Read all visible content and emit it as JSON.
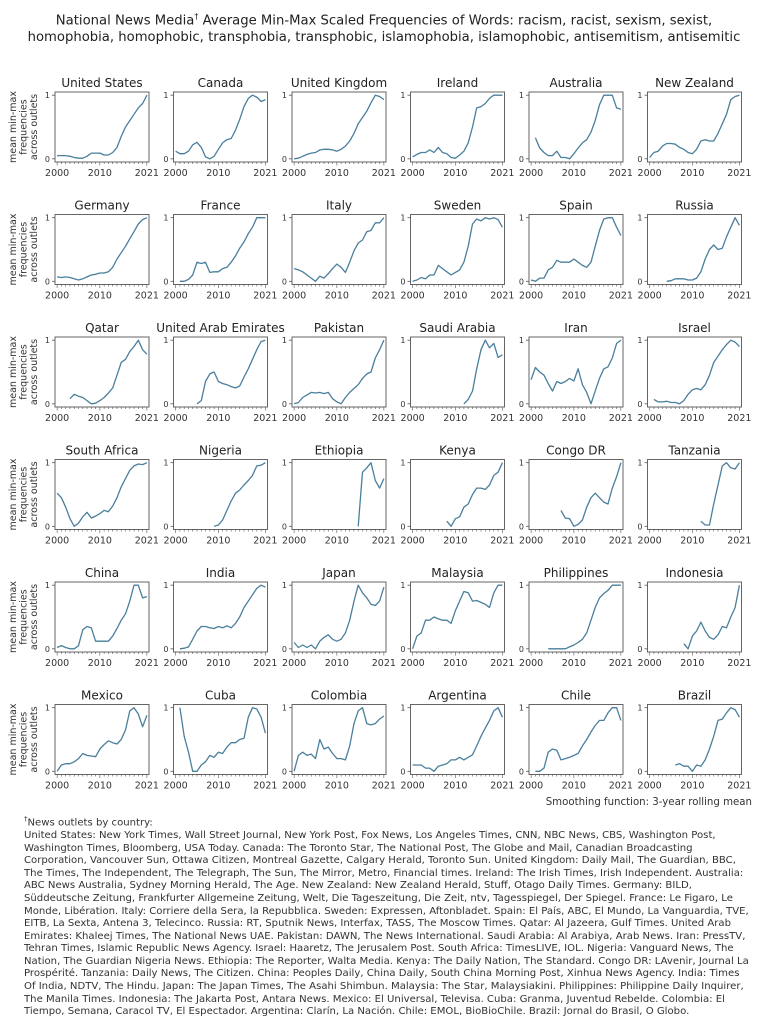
{
  "title": {
    "line1_prefix": "National News Media",
    "marker": "†",
    "line1_rest": " Average Min-Max Scaled Frequencies of Words: racism, racist, sexism, sexist,",
    "line2": "homophobia, homophobic, transphobia, transphobic, islamophobia, islamophobic, antisemitism, antisemitic"
  },
  "smoothing_note": "Smoothing function: 3-year rolling mean",
  "footnote": {
    "marker": "†",
    "heading": "News outlets by country:",
    "body": "United States: New York Times, Wall Street Journal, New York Post, Fox News, Los Angeles Times, CNN, NBC News, CBS, Washington Post, Washington Times, Bloomberg, USA Today. Canada: The Toronto Star, The National Post, The Globe and Mail, Canadian Broadcasting Corporation, Vancouver Sun, Ottawa Citizen, Montreal Gazette, Calgary Herald, Toronto Sun. United Kingdom: Daily Mail, The Guardian, BBC, The Times, The Independent, The Telegraph, The Sun, The Mirror, Metro, Financial times. Ireland: The Irish Times, Irish Independent. Australia: ABC News Australia, Sydney Morning Herald, The Age. New Zealand: New Zealand Herald, Stuff, Otago Daily Times. Germany: BILD, Süddeutsche Zeitung, Frankfurter Allgemeine Zeitung, Welt, Die Tageszeitung, Die Zeit, ntv, Tagesspiegel, Der Spiegel. France: Le Figaro, Le Monde, Libération. Italy: Corriere della Sera, la Repubblica. Sweden: Expressen, Aftonbladet. Spain: El País, ABC, El Mundo, La Vanguardia, TVE, EITB, La Sexta, Antena 3, Telecinco. Russia: RT, Sputnik News, Interfax, TASS, The Moscow Times. Qatar: Al Jazeera, Gulf Times. United Arab Emirates: Khaleej Times, The National News UAE. Pakistan: DAWN, The News International. Saudi Arabia: Al Arabiya, Arab News. Iran: PressTV, Tehran Times, Islamic Republic News Agency. Israel: Haaretz, The Jerusalem Post. South Africa: TimesLIVE, IOL. Nigeria: Vanguard News, The Nation, The Guardian Nigeria News. Ethiopia: The Reporter, Walta Media. Kenya: The Daily Nation, The Standard. Congo DR: LAvenir, Journal La Prospérité. Tanzania: Daily News, The Citizen. China: Peoples Daily, China Daily, South China Morning Post, Xinhua News Agency. India: Times Of India, NDTV, The Hindu. Japan: The Japan Times, The Asahi Shimbun. Malaysia: The Star, Malaysiakini. Philippines: Philippine Daily Inquirer, The Manila Times. Indonesia: The Jakarta Post, Antara News. Mexico: El Universal, Televisa. Cuba: Granma, Juventud Rebelde. Colombia: El Tiempo, Semana, Caracol TV, El Espectador. Argentina: Clarín, La Nación. Chile: EMOL, BioBioChile. Brazil: Jornal do Brasil, O Globo."
  },
  "chart_data": {
    "type": "line",
    "layout": "small-multiples 6x6",
    "ylabel_lines": [
      "mean min-max",
      "frequencies",
      "across outlets"
    ],
    "x_ticks": [
      "2000",
      "2010",
      "2021"
    ],
    "y_ticks": [
      "0",
      "1"
    ],
    "xlim": [
      2000,
      2021
    ],
    "ylim": [
      0,
      1
    ],
    "minor_x_ticks": "yearly",
    "grid": false,
    "line_color": "#4a7f9c",
    "x": [
      2000,
      2001,
      2002,
      2003,
      2004,
      2005,
      2006,
      2007,
      2008,
      2009,
      2010,
      2011,
      2012,
      2013,
      2014,
      2015,
      2016,
      2017,
      2018,
      2019,
      2020,
      2021
    ],
    "panels": [
      {
        "title": "United States",
        "values": [
          0.05,
          0.05,
          0.05,
          0.04,
          0.02,
          0.01,
          0.01,
          0.04,
          0.09,
          0.09,
          0.09,
          0.06,
          0.06,
          0.1,
          0.18,
          0.35,
          0.5,
          0.6,
          0.7,
          0.8,
          0.87,
          1.0
        ]
      },
      {
        "title": "Canada",
        "values": [
          0.12,
          0.08,
          0.08,
          0.12,
          0.22,
          0.26,
          0.18,
          0.03,
          0,
          0.04,
          0.15,
          0.25,
          0.3,
          0.32,
          0.45,
          0.62,
          0.82,
          0.95,
          1.0,
          0.97,
          0.9,
          0.93
        ]
      },
      {
        "title": "United Kingdom",
        "values": [
          0,
          0.01,
          0.04,
          0.07,
          0.09,
          0.1,
          0.14,
          0.15,
          0.15,
          0.14,
          0.12,
          0.15,
          0.2,
          0.28,
          0.4,
          0.55,
          0.65,
          0.75,
          0.88,
          1.0,
          0.98,
          0.93
        ]
      },
      {
        "title": "Ireland",
        "values": [
          0.03,
          0.07,
          0.1,
          0.1,
          0.14,
          0.1,
          0.18,
          0.1,
          0.08,
          0.02,
          0.01,
          0.06,
          0.12,
          0.25,
          0.5,
          0.8,
          0.82,
          0.87,
          0.95,
          1.0,
          1.0,
          1.0
        ]
      },
      {
        "title": "Australia",
        "values": [
          null,
          0.33,
          0.17,
          0.1,
          0.05,
          0.05,
          0.12,
          0.02,
          0.02,
          0,
          0.08,
          0.17,
          0.25,
          0.3,
          0.42,
          0.6,
          0.85,
          1.0,
          1.0,
          1.0,
          0.8,
          0.78
        ]
      },
      {
        "title": "New Zealand",
        "values": [
          0.02,
          0.1,
          0.12,
          0.2,
          0.24,
          0.24,
          0.23,
          0.18,
          0.15,
          0.1,
          0.08,
          0.15,
          0.28,
          0.3,
          0.28,
          0.28,
          0.4,
          0.55,
          0.7,
          0.93,
          0.98,
          1.0
        ]
      },
      {
        "title": "Germany",
        "values": [
          0.07,
          0.06,
          0.07,
          0.06,
          0.04,
          0.02,
          0.04,
          0.07,
          0.1,
          0.11,
          0.13,
          0.13,
          0.15,
          0.22,
          0.35,
          0.45,
          0.55,
          0.67,
          0.78,
          0.9,
          0.97,
          1.0
        ]
      },
      {
        "title": "France",
        "values": [
          null,
          0,
          0,
          0.03,
          0.1,
          0.3,
          0.28,
          0.3,
          0.14,
          0.15,
          0.15,
          0.2,
          0.22,
          0.3,
          0.4,
          0.52,
          0.62,
          0.75,
          0.85,
          1.0,
          1.0,
          1.0
        ]
      },
      {
        "title": "Italy",
        "values": [
          0.2,
          0.18,
          0.15,
          0.1,
          0.05,
          0,
          0.08,
          0.05,
          0.12,
          0.2,
          0.27,
          0.22,
          0.14,
          0.3,
          0.48,
          0.6,
          0.65,
          0.78,
          0.8,
          0.92,
          0.92,
          1.0
        ]
      },
      {
        "title": "Sweden",
        "values": [
          0,
          0.02,
          0.06,
          0.04,
          0.1,
          0.1,
          0.25,
          0.2,
          0.15,
          0.1,
          0.14,
          0.18,
          0.3,
          0.55,
          0.9,
          0.98,
          0.95,
          1.0,
          0.98,
          1.0,
          0.97,
          0.85
        ]
      },
      {
        "title": "Spain",
        "values": [
          0.02,
          0,
          0.05,
          0.05,
          0.18,
          0.22,
          0.33,
          0.3,
          0.3,
          0.3,
          0.35,
          0.3,
          0.25,
          0.22,
          0.3,
          0.55,
          0.8,
          0.98,
          1.0,
          1.0,
          0.85,
          0.72
        ]
      },
      {
        "title": "Russia",
        "values": [
          null,
          null,
          null,
          null,
          0,
          0.01,
          0.04,
          0.04,
          0.04,
          0.02,
          0.02,
          0.05,
          0.15,
          0.35,
          0.5,
          0.57,
          0.5,
          0.52,
          0.7,
          0.85,
          1.0,
          0.88
        ]
      },
      {
        "title": "Qatar",
        "values": [
          null,
          null,
          null,
          0.08,
          0.15,
          0.12,
          0.1,
          0.05,
          0,
          0.01,
          0.05,
          0.1,
          0.17,
          0.25,
          0.45,
          0.65,
          0.7,
          0.82,
          0.9,
          1.0,
          0.85,
          0.78
        ]
      },
      {
        "title": "United Arab Emirates",
        "values": [
          null,
          null,
          null,
          null,
          null,
          0,
          0.05,
          0.35,
          0.47,
          0.5,
          0.35,
          0.32,
          0.3,
          0.27,
          0.25,
          0.28,
          0.42,
          0.55,
          0.7,
          0.85,
          0.98,
          1.0
        ]
      },
      {
        "title": "Pakistan",
        "values": [
          0,
          0.02,
          0.1,
          0.14,
          0.18,
          0.17,
          0.18,
          0.16,
          0.18,
          0.08,
          0.03,
          0,
          0.1,
          0.18,
          0.24,
          0.3,
          0.4,
          0.47,
          0.5,
          0.72,
          0.85,
          1.0
        ]
      },
      {
        "title": "Saudi Arabia",
        "values": [
          null,
          null,
          null,
          null,
          null,
          null,
          null,
          null,
          null,
          null,
          null,
          null,
          0,
          0.07,
          0.2,
          0.55,
          0.85,
          1.0,
          0.88,
          0.95,
          0.73,
          0.77
        ]
      },
      {
        "title": "Iran",
        "values": [
          0.38,
          0.57,
          0.5,
          0.45,
          0.32,
          0.2,
          0.35,
          0.32,
          0.35,
          0.4,
          0.36,
          0.55,
          0.3,
          0.18,
          0,
          0.2,
          0.4,
          0.55,
          0.58,
          0.72,
          0.95,
          1.0
        ]
      },
      {
        "title": "Israel",
        "values": [
          null,
          0.07,
          0.03,
          0.03,
          0.04,
          0.02,
          0.02,
          0,
          0.05,
          0.15,
          0.22,
          0.24,
          0.22,
          0.3,
          0.45,
          0.65,
          0.75,
          0.85,
          0.93,
          1.0,
          0.97,
          0.9
        ]
      },
      {
        "title": "South Africa",
        "values": [
          0.52,
          0.45,
          0.3,
          0.12,
          0,
          0.05,
          0.15,
          0.22,
          0.13,
          0.16,
          0.2,
          0.25,
          0.23,
          0.32,
          0.45,
          0.62,
          0.75,
          0.88,
          0.95,
          0.98,
          0.97,
          1.0
        ]
      },
      {
        "title": "Nigeria",
        "values": [
          null,
          null,
          null,
          null,
          null,
          null,
          null,
          null,
          null,
          0,
          0.02,
          0.1,
          0.25,
          0.4,
          0.52,
          0.57,
          0.65,
          0.72,
          0.8,
          0.95,
          0.96,
          1.0
        ]
      },
      {
        "title": "Ethiopia",
        "values": [
          null,
          null,
          null,
          null,
          null,
          null,
          null,
          null,
          null,
          null,
          null,
          null,
          null,
          null,
          null,
          0,
          0.85,
          0.92,
          1.0,
          0.72,
          0.6,
          0.75
        ]
      },
      {
        "title": "Kenya",
        "values": [
          null,
          null,
          null,
          null,
          null,
          null,
          null,
          null,
          0.08,
          0,
          0.12,
          0.15,
          0.3,
          0.35,
          0.5,
          0.6,
          0.6,
          0.58,
          0.65,
          0.8,
          0.85,
          1.0
        ]
      },
      {
        "title": "Congo DR",
        "values": [
          null,
          null,
          null,
          null,
          null,
          null,
          null,
          0.25,
          0.13,
          0.12,
          0,
          0.03,
          0.1,
          0.3,
          0.45,
          0.52,
          0.45,
          0.38,
          0.35,
          0.6,
          0.78,
          1.0
        ]
      },
      {
        "title": "Tanzania",
        "values": [
          null,
          null,
          null,
          null,
          null,
          null,
          null,
          null,
          null,
          null,
          null,
          null,
          0.08,
          0.02,
          0.02,
          0.35,
          0.65,
          0.95,
          1.0,
          0.92,
          0.9,
          1.0
        ]
      },
      {
        "title": "China",
        "values": [
          0.02,
          0.05,
          0.02,
          0,
          0,
          0.05,
          0.3,
          0.35,
          0.33,
          0.12,
          0.12,
          0.12,
          0.12,
          0.2,
          0.32,
          0.45,
          0.55,
          0.75,
          1.0,
          1.0,
          0.8,
          0.82
        ]
      },
      {
        "title": "India",
        "values": [
          null,
          0,
          0.01,
          0.03,
          0.15,
          0.28,
          0.35,
          0.35,
          0.33,
          0.32,
          0.35,
          0.33,
          0.36,
          0.33,
          0.4,
          0.5,
          0.65,
          0.75,
          0.85,
          0.95,
          1.0,
          0.97
        ]
      },
      {
        "title": "Japan",
        "values": [
          0.1,
          0.02,
          0.06,
          0.02,
          0.06,
          0,
          0.12,
          0.18,
          0.22,
          0.15,
          0.12,
          0.15,
          0.25,
          0.45,
          0.75,
          1.0,
          0.88,
          0.8,
          0.7,
          0.68,
          0.75,
          0.97
        ]
      },
      {
        "title": "Malaysia",
        "values": [
          0,
          0.2,
          0.25,
          0.45,
          0.45,
          0.5,
          0.47,
          0.45,
          0.45,
          0.4,
          0.6,
          0.75,
          0.9,
          0.88,
          0.75,
          0.76,
          0.73,
          0.7,
          0.65,
          0.88,
          1.0,
          1.0
        ]
      },
      {
        "title": "Philippines",
        "values": [
          null,
          null,
          null,
          null,
          0,
          0,
          0,
          0,
          0,
          0.03,
          0.06,
          0.1,
          0.15,
          0.25,
          0.45,
          0.65,
          0.8,
          0.87,
          0.92,
          1.0,
          1.0,
          1.0
        ]
      },
      {
        "title": "Indonesia",
        "values": [
          null,
          null,
          null,
          null,
          null,
          null,
          null,
          null,
          0.08,
          0,
          0.2,
          0.28,
          0.42,
          0.28,
          0.18,
          0.15,
          0.22,
          0.35,
          0.33,
          0.5,
          0.65,
          1.0
        ]
      },
      {
        "title": "Mexico",
        "values": [
          0,
          0.1,
          0.12,
          0.12,
          0.15,
          0.2,
          0.28,
          0.25,
          0.24,
          0.23,
          0.35,
          0.42,
          0.48,
          0.45,
          0.43,
          0.5,
          0.65,
          0.95,
          1.0,
          0.9,
          0.7,
          0.88
        ]
      },
      {
        "title": "Cuba",
        "values": [
          null,
          1.0,
          0.55,
          0.3,
          0,
          0,
          0.1,
          0.15,
          0.25,
          0.22,
          0.3,
          0.28,
          0.38,
          0.45,
          0.45,
          0.5,
          0.52,
          0.85,
          1.0,
          0.98,
          0.85,
          0.6
        ]
      },
      {
        "title": "Colombia",
        "values": [
          0,
          0.25,
          0.3,
          0.25,
          0.27,
          0.2,
          0.5,
          0.35,
          0.38,
          0.28,
          0.2,
          0.2,
          0.18,
          0.4,
          0.75,
          0.95,
          1.0,
          0.75,
          0.73,
          0.75,
          0.82,
          0.87
        ]
      },
      {
        "title": "Argentina",
        "values": [
          0.1,
          0.1,
          0.1,
          0.05,
          0.05,
          0,
          0.08,
          0.1,
          0.12,
          0.18,
          0.18,
          0.22,
          0.18,
          0.22,
          0.26,
          0.4,
          0.55,
          0.68,
          0.8,
          0.95,
          1.0,
          0.85
        ]
      },
      {
        "title": "Chile",
        "values": [
          null,
          0,
          0,
          0.05,
          0.3,
          0.35,
          0.33,
          0.18,
          0.2,
          0.22,
          0.25,
          0.28,
          0.4,
          0.5,
          0.62,
          0.72,
          0.8,
          0.8,
          0.92,
          1.0,
          1.0,
          0.8
        ]
      },
      {
        "title": "Brazil",
        "values": [
          null,
          null,
          null,
          null,
          null,
          null,
          0.1,
          0.12,
          0.08,
          0.08,
          0,
          0.1,
          0.08,
          0.18,
          0.35,
          0.55,
          0.8,
          0.82,
          0.92,
          1.0,
          0.97,
          0.85
        ]
      }
    ]
  }
}
